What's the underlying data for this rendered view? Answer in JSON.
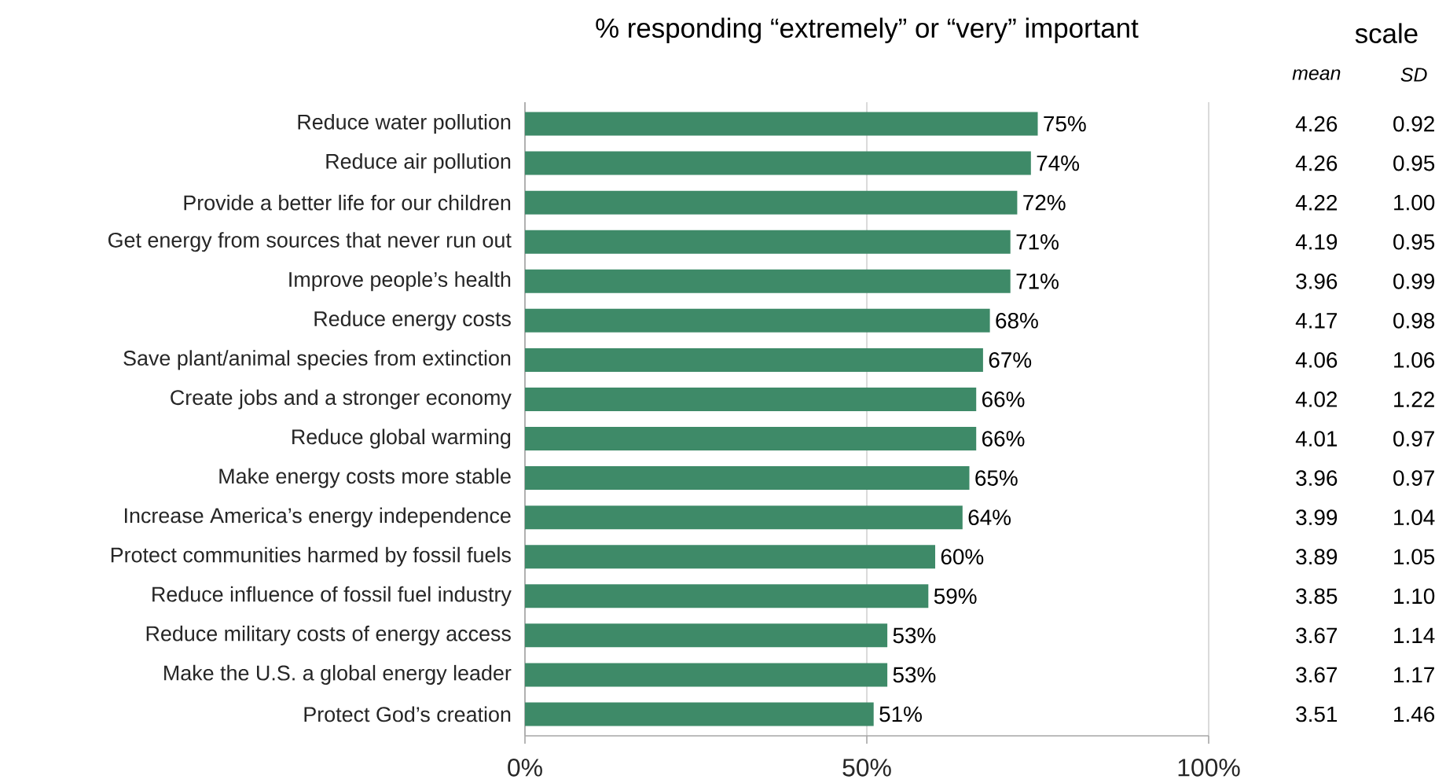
{
  "chart_data": [
    {
      "type": "bar",
      "orientation": "horizontal",
      "title": "% responding “extremely” or “very” important",
      "categories": [
        "Reduce water pollution",
        "Reduce air pollution",
        "Provide a better life for our children",
        "Get energy from sources that never run out",
        "Improve people’s health",
        "Reduce energy costs",
        "Save plant/animal species from extinction",
        "Create jobs and a stronger economy",
        "Reduce global warming",
        "Make energy costs more stable",
        "Increase America’s energy independence",
        "Protect communities harmed by fossil fuels",
        "Reduce influence of fossil fuel industry",
        "Reduce military costs of energy access",
        "Make the U.S. a global energy leader",
        "Protect God’s creation"
      ],
      "values": [
        75,
        74,
        72,
        71,
        71,
        68,
        67,
        66,
        66,
        65,
        64,
        60,
        59,
        53,
        53,
        51
      ],
      "value_labels": [
        "75%",
        "74%",
        "72%",
        "71%",
        "71%",
        "68%",
        "67%",
        "66%",
        "66%",
        "65%",
        "64%",
        "60%",
        "59%",
        "53%",
        "53%",
        "51%"
      ],
      "color": "#3e8a68",
      "xlim": [
        0,
        100
      ],
      "xticks": [
        {
          "value": 0,
          "label": "0%"
        },
        {
          "value": 50,
          "label": "50%"
        },
        {
          "value": 100,
          "label": "100%"
        }
      ],
      "grid": "x"
    },
    {
      "type": "other",
      "title": "scale",
      "annotations": [
        "mean",
        "SD",
        "4.26",
        "0.92",
        "4.26",
        "0.95",
        "4.22",
        "1.00",
        "4.19",
        "0.95",
        "3.96",
        "0.99",
        "4.17",
        "0.98",
        "4.06",
        "1.06",
        "4.02",
        "1.22",
        "4.01",
        "0.97",
        "3.96",
        "0.97",
        "3.99",
        "1.04",
        "3.89",
        "1.05",
        "3.85",
        "1.10",
        "3.67",
        "1.14",
        "3.67",
        "1.17",
        "3.51",
        "1.46"
      ]
    }
  ]
}
